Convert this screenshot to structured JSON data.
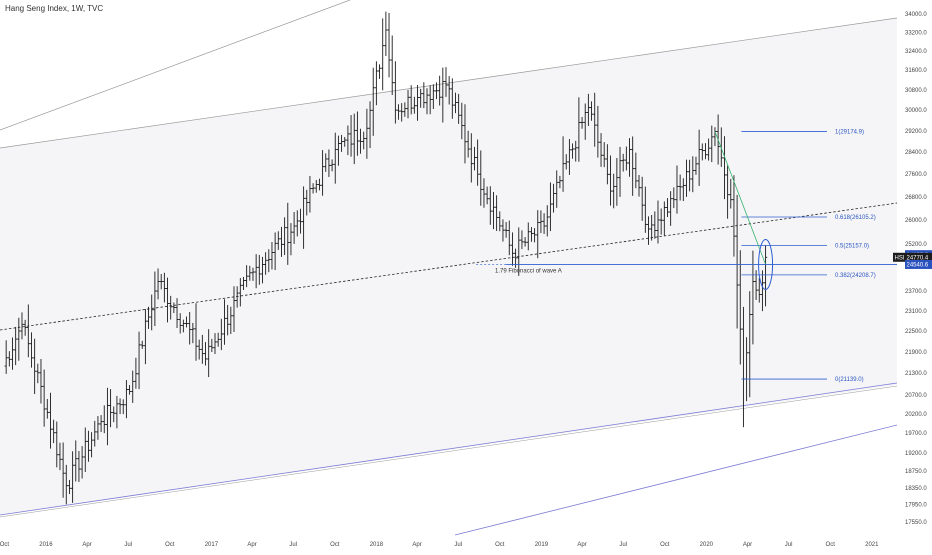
{
  "header": {
    "title": "Hang Seng Index, 1W, TVC"
  },
  "colors": {
    "bars": "#1a1a1a",
    "trendline": "#999999",
    "channel": "#7b7bd6",
    "fib": "#2f5fd0",
    "fib_label": "#2a55c0",
    "diagonal": "#3cb371",
    "price_badge_dark": "#1c1c1c",
    "price_badge_blue": "#2a52be"
  },
  "chart_data": {
    "type": "ohlc",
    "symbol": "HSI",
    "timeframe": "1W",
    "x_tick_labels": [
      "Oct",
      "2016",
      "Apr",
      "Jul",
      "Oct",
      "2017",
      "Apr",
      "Jul",
      "Oct",
      "2018",
      "Apr",
      "Jul",
      "Oct",
      "2019",
      "Apr",
      "Jul",
      "Oct",
      "2020",
      "Apr",
      "Jul",
      "Oct",
      "2021"
    ],
    "y_tick_labels": [
      "34000.0",
      "33200.0",
      "32400.0",
      "31600.0",
      "30800.0",
      "30000.0",
      "29200.0",
      "28400.0",
      "27600.0",
      "26800.0",
      "26000.0",
      "25200.0",
      "23700.0",
      "23100.0",
      "22500.0",
      "21900.0",
      "21300.0",
      "20700.0",
      "20200.0",
      "19700.0",
      "19200.0",
      "18750.0",
      "18350.0",
      "17950.0",
      "17550.0"
    ],
    "ylim": [
      17550,
      34000
    ],
    "y_scale": "log",
    "keypoints": [
      {
        "date": "2015-09-28",
        "price": 21500
      },
      {
        "date": "2015-11-09",
        "price": 22700
      },
      {
        "date": "2016-02-15",
        "price": 18400
      },
      {
        "date": "2016-05-02",
        "price": 20000
      },
      {
        "date": "2016-07-04",
        "price": 20800
      },
      {
        "date": "2016-09-05",
        "price": 24000
      },
      {
        "date": "2016-12-19",
        "price": 21700
      },
      {
        "date": "2017-04-03",
        "price": 24300
      },
      {
        "date": "2017-07-03",
        "price": 25800
      },
      {
        "date": "2017-10-02",
        "price": 28500
      },
      {
        "date": "2017-12-11",
        "price": 29300
      },
      {
        "date": "2018-01-22",
        "price": 33300
      },
      {
        "date": "2018-02-12",
        "price": 30000
      },
      {
        "date": "2018-04-02",
        "price": 30500
      },
      {
        "date": "2018-06-04",
        "price": 31000
      },
      {
        "date": "2018-08-13",
        "price": 27600
      },
      {
        "date": "2018-10-29",
        "price": 24900
      },
      {
        "date": "2019-01-07",
        "price": 25800
      },
      {
        "date": "2019-04-15",
        "price": 30100
      },
      {
        "date": "2019-06-03",
        "price": 27000
      },
      {
        "date": "2019-07-15",
        "price": 28500
      },
      {
        "date": "2019-08-26",
        "price": 25700
      },
      {
        "date": "2019-10-21",
        "price": 26700
      },
      {
        "date": "2020-01-20",
        "price": 29175
      },
      {
        "date": "2020-02-24",
        "price": 26700
      },
      {
        "date": "2020-03-23",
        "price": 21139
      },
      {
        "date": "2020-04-13",
        "price": 24000
      },
      {
        "date": "2020-04-27",
        "price": 23600
      },
      {
        "date": "2020-05-11",
        "price": 24770
      }
    ],
    "fibonacci": {
      "levels": [
        {
          "label": "1(29174.9)",
          "price": 29174.9
        },
        {
          "label": "0.618(26105.2)",
          "price": 26105.2
        },
        {
          "label": "0.5(25157.0)",
          "price": 25157.0
        },
        {
          "label": "0.382(24208.7)",
          "price": 24208.7
        },
        {
          "label": "0(21139.0)",
          "price": 21139.0
        }
      ]
    },
    "annotations": [
      {
        "text": "1.79 Fibonacci of wave A",
        "price": 24540.6
      }
    ],
    "price_badges": [
      {
        "label": "24855.5",
        "style": "blue"
      },
      {
        "label": "HSI",
        "style": "dark"
      },
      {
        "label": "24770.4",
        "style": "dark"
      },
      {
        "label": "24540.6",
        "style": "blue"
      }
    ]
  }
}
